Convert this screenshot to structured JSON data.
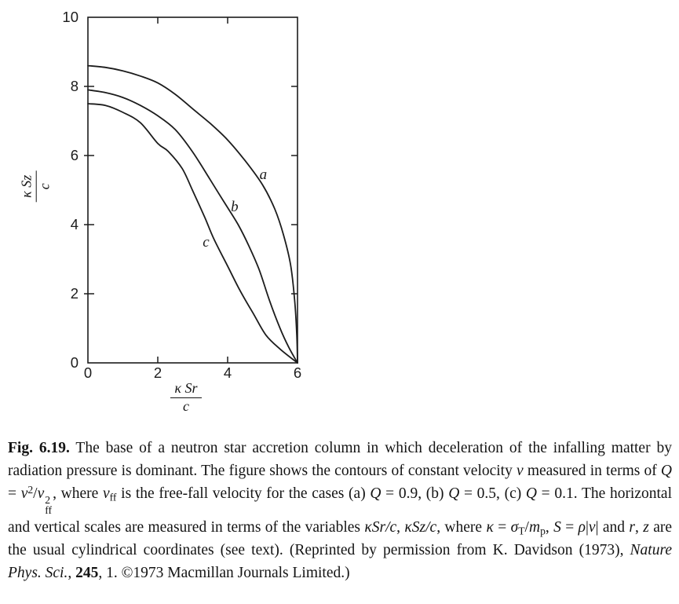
{
  "colors": {
    "background": "#ffffff",
    "line": "#1c1c1c",
    "text": "#141414"
  },
  "chart_data": {
    "type": "line",
    "title": "",
    "xlabel": "κSr/c",
    "ylabel": "κSz/c",
    "xlabel_fraction": {
      "numerator": "κ Sr",
      "denominator": "c"
    },
    "ylabel_fraction": {
      "numerator": "κ Sz",
      "denominator": "c"
    },
    "xlim": [
      0,
      6
    ],
    "ylim": [
      0,
      10
    ],
    "xticks": [
      0,
      2,
      4,
      6
    ],
    "yticks": [
      0,
      2,
      4,
      6,
      8,
      10
    ],
    "grid": false,
    "legend_position": "inline curve labels",
    "series": [
      {
        "name": "a",
        "Q": 0.9,
        "points": [
          [
            0,
            8.6
          ],
          [
            0.5,
            8.55
          ],
          [
            1,
            8.45
          ],
          [
            1.5,
            8.3
          ],
          [
            2,
            8.1
          ],
          [
            2.5,
            7.77
          ],
          [
            3,
            7.35
          ],
          [
            3.5,
            6.93
          ],
          [
            4,
            6.45
          ],
          [
            4.5,
            5.85
          ],
          [
            5,
            5.15
          ],
          [
            5.35,
            4.45
          ],
          [
            5.6,
            3.7
          ],
          [
            5.8,
            2.85
          ],
          [
            5.92,
            1.8
          ],
          [
            5.98,
            0.8
          ],
          [
            6,
            0
          ]
        ]
      },
      {
        "name": "b",
        "Q": 0.5,
        "points": [
          [
            0,
            7.9
          ],
          [
            0.5,
            7.82
          ],
          [
            1,
            7.68
          ],
          [
            1.5,
            7.45
          ],
          [
            2,
            7.15
          ],
          [
            2.5,
            6.75
          ],
          [
            3,
            6.1
          ],
          [
            3.5,
            5.3
          ],
          [
            3.9,
            4.65
          ],
          [
            4.3,
            4.0
          ],
          [
            4.6,
            3.4
          ],
          [
            4.9,
            2.7
          ],
          [
            5.2,
            1.8
          ],
          [
            5.5,
            1.0
          ],
          [
            5.75,
            0.45
          ],
          [
            6,
            0
          ]
        ]
      },
      {
        "name": "c",
        "Q": 0.1,
        "points": [
          [
            0,
            7.5
          ],
          [
            0.5,
            7.45
          ],
          [
            1,
            7.25
          ],
          [
            1.5,
            6.95
          ],
          [
            2,
            6.35
          ],
          [
            2.3,
            6.12
          ],
          [
            2.7,
            5.62
          ],
          [
            3,
            4.98
          ],
          [
            3.35,
            4.2
          ],
          [
            3.6,
            3.6
          ],
          [
            4,
            2.8
          ],
          [
            4.35,
            2.1
          ],
          [
            4.75,
            1.4
          ],
          [
            5.1,
            0.8
          ],
          [
            5.5,
            0.4
          ],
          [
            6,
            0
          ]
        ]
      }
    ],
    "curve_labels": [
      {
        "text": "a",
        "x": 5.02,
        "y": 5.45
      },
      {
        "text": "b",
        "x": 4.2,
        "y": 4.52
      },
      {
        "text": "c",
        "x": 3.38,
        "y": 3.5
      }
    ]
  },
  "figure": {
    "caption_segments": [
      {
        "s": "b",
        "t": "Fig. 6.19."
      },
      {
        "s": "n",
        "t": " The base of a neutron star accretion column in which deceleration of the infalling matter by radiation pressure is dominant. The figure shows the contours of constant velocity "
      },
      {
        "s": "i",
        "t": "v"
      },
      {
        "s": "n",
        "t": " measured in terms of "
      },
      {
        "s": "i",
        "t": "Q"
      },
      {
        "s": "n",
        "t": " = "
      },
      {
        "s": "i",
        "t": "v"
      },
      {
        "s": "sup",
        "t": "2"
      },
      {
        "s": "n",
        "t": "/"
      },
      {
        "s": "i",
        "t": "v"
      },
      {
        "s": "stack",
        "sup": "2",
        "sub": "ff"
      },
      {
        "s": "n",
        "t": ", where "
      },
      {
        "s": "i",
        "t": "v"
      },
      {
        "s": "sub",
        "t": "ff"
      },
      {
        "s": "n",
        "t": " is the free-fall velocity for the cases (a) "
      },
      {
        "s": "i",
        "t": "Q"
      },
      {
        "s": "n",
        "t": " = 0.9, (b) "
      },
      {
        "s": "i",
        "t": "Q"
      },
      {
        "s": "n",
        "t": " = 0.5, (c) "
      },
      {
        "s": "i",
        "t": "Q"
      },
      {
        "s": "n",
        "t": " = 0.1. The horizontal and vertical scales are measured in terms of the variables "
      },
      {
        "s": "i",
        "t": "κSr/c"
      },
      {
        "s": "n",
        "t": ", "
      },
      {
        "s": "i",
        "t": "κSz/c"
      },
      {
        "s": "n",
        "t": ", where "
      },
      {
        "s": "i",
        "t": "κ"
      },
      {
        "s": "n",
        "t": " = "
      },
      {
        "s": "i",
        "t": "σ"
      },
      {
        "s": "sub",
        "t": "T"
      },
      {
        "s": "n",
        "t": "/"
      },
      {
        "s": "i",
        "t": "m"
      },
      {
        "s": "sub",
        "t": "p"
      },
      {
        "s": "n",
        "t": ", "
      },
      {
        "s": "i",
        "t": "S"
      },
      {
        "s": "n",
        "t": " = "
      },
      {
        "s": "i",
        "t": "ρ"
      },
      {
        "s": "n",
        "t": "|"
      },
      {
        "s": "i",
        "t": "v"
      },
      {
        "s": "n",
        "t": "| and "
      },
      {
        "s": "i",
        "t": "r"
      },
      {
        "s": "n",
        "t": ", "
      },
      {
        "s": "i",
        "t": "z"
      },
      {
        "s": "n",
        "t": " are the usual cylindrical coordinates (see text). (Reprinted by permission from K. Davidson (1973), "
      },
      {
        "s": "i",
        "t": "Nature Phys. Sci."
      },
      {
        "s": "n",
        "t": ", "
      },
      {
        "s": "b",
        "t": "245"
      },
      {
        "s": "n",
        "t": ", 1. ©1973 Macmillan Journals Limited.)"
      }
    ]
  }
}
